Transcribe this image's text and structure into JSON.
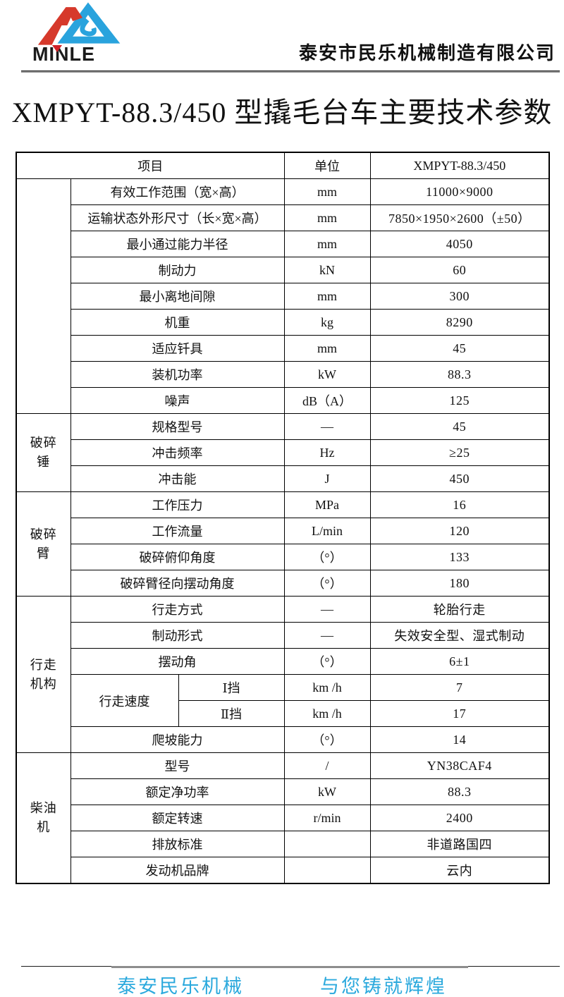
{
  "header": {
    "logo_text": "MINLE",
    "company": "泰安市民乐机械制造有限公司"
  },
  "colors": {
    "logo_red": "#d6392b",
    "logo_blue": "#29a3dd",
    "footer_blue": "#2ba9dd"
  },
  "title": "XMPYT-88.3/450 型撬毛台车主要技术参数",
  "table": {
    "headers": {
      "item": "项目",
      "unit": "单位",
      "model": "XMPYT-88.3/450"
    },
    "groups": [
      {
        "label": "",
        "rows": [
          {
            "item": "有效工作范围（宽×高）",
            "unit": "mm",
            "value": "11000×9000"
          },
          {
            "item": "运输状态外形尺寸（长×宽×高）",
            "unit": "mm",
            "value": "7850×1950×2600（±50）"
          },
          {
            "item": "最小通过能力半径",
            "unit": "mm",
            "value": "4050"
          },
          {
            "item": "制动力",
            "unit": "kN",
            "value": "60"
          },
          {
            "item": "最小离地间隙",
            "unit": "mm",
            "value": "300"
          },
          {
            "item": "机重",
            "unit": "kg",
            "value": "8290"
          },
          {
            "item": "适应钎具",
            "unit": "mm",
            "value": "45"
          },
          {
            "item": "装机功率",
            "unit": "kW",
            "value": "88.3"
          },
          {
            "item": "噪声",
            "unit": "dB（A）",
            "value": "125"
          }
        ]
      },
      {
        "label": "破碎\n锤",
        "rows": [
          {
            "item": "规格型号",
            "unit": "—",
            "value": "45"
          },
          {
            "item": "冲击频率",
            "unit": "Hz",
            "value": "≥25"
          },
          {
            "item": "冲击能",
            "unit": "J",
            "value": "450"
          }
        ]
      },
      {
        "label": "破碎\n臂",
        "rows": [
          {
            "item": "工作压力",
            "unit": "MPa",
            "value": "16"
          },
          {
            "item": "工作流量",
            "unit": "L/min",
            "value": "120"
          },
          {
            "item": "破碎俯仰角度",
            "unit": "（°）",
            "value": "133"
          },
          {
            "item": "破碎臂径向摆动角度",
            "unit": "（°）",
            "value": "180"
          }
        ]
      },
      {
        "label": "行走\n机构",
        "rows": [
          {
            "item": "行走方式",
            "unit": "—",
            "value": "轮胎行走"
          },
          {
            "item": "制动形式",
            "unit": "—",
            "value": "失效安全型、湿式制动"
          },
          {
            "item": "摆动角",
            "unit": "（°）",
            "value": "6±1"
          },
          {
            "item": "行走速度",
            "item_rowspan": 2,
            "sub": "Ⅰ挡",
            "unit": "km /h",
            "value": "7"
          },
          {
            "sub": "Ⅱ挡",
            "unit": "km /h",
            "value": "17"
          },
          {
            "item": "爬坡能力",
            "unit": "（°）",
            "value": "14"
          }
        ]
      },
      {
        "label": "柴油\n机",
        "rows": [
          {
            "item": "型号",
            "unit": "/",
            "value": "YN38CAF4"
          },
          {
            "item": "额定净功率",
            "unit": "kW",
            "value": "88.3"
          },
          {
            "item": "额定转速",
            "unit": "r/min",
            "value": "2400"
          },
          {
            "item": "排放标准",
            "unit": "",
            "value": "非道路国四"
          },
          {
            "item": "发动机品牌",
            "unit": "",
            "value": "云内"
          }
        ]
      }
    ]
  },
  "footer": {
    "left": "泰安民乐机械",
    "right": "与您铸就辉煌"
  }
}
